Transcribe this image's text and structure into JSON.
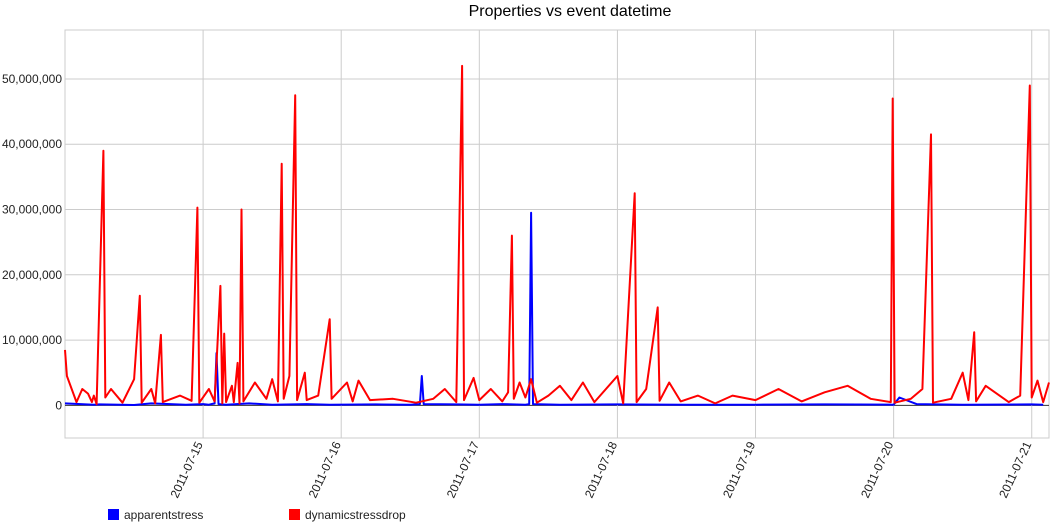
{
  "chart_data": {
    "type": "line",
    "title": "Properties vs event datetime",
    "xlabel": "",
    "ylabel": "",
    "xlim": [
      "2011-07-14 00:00",
      "2011-07-21 03:00"
    ],
    "ylim": [
      -5000000,
      57500000
    ],
    "yticks": [
      0,
      10000000,
      20000000,
      30000000,
      40000000,
      50000000
    ],
    "ytick_labels": [
      "0",
      "10,000,000",
      "20,000,000",
      "30,000,000",
      "40,000,000",
      "50,000,000"
    ],
    "xticks": [
      "2011-07-15",
      "2011-07-16",
      "2011-07-17",
      "2011-07-18",
      "2011-07-19",
      "2011-07-20",
      "2011-07-21"
    ],
    "grid": true,
    "legend_position": "bottom-left",
    "series": [
      {
        "name": "apparentstress",
        "color": "#0000ff",
        "points": [
          [
            "2011-07-14 00:00",
            300000
          ],
          [
            "2011-07-14 05:00",
            100000
          ],
          [
            "2011-07-14 06:00",
            150000
          ],
          [
            "2011-07-14 12:00",
            50000
          ],
          [
            "2011-07-14 15:00",
            300000
          ],
          [
            "2011-07-14 21:00",
            100000
          ],
          [
            "2011-07-15 00:00",
            200000
          ],
          [
            "2011-07-15 01:00",
            100000
          ],
          [
            "2011-07-15 02:00",
            300000
          ],
          [
            "2011-07-15 02:20",
            8000000
          ],
          [
            "2011-07-15 02:40",
            200000
          ],
          [
            "2011-07-15 04:00",
            100000
          ],
          [
            "2011-07-15 08:00",
            300000
          ],
          [
            "2011-07-15 12:00",
            100000
          ],
          [
            "2011-07-15 18:00",
            200000
          ],
          [
            "2011-07-15 22:00",
            100000
          ],
          [
            "2011-07-16 06:00",
            150000
          ],
          [
            "2011-07-16 12:00",
            100000
          ],
          [
            "2011-07-16 13:40",
            200000
          ],
          [
            "2011-07-16 14:00",
            4500000
          ],
          [
            "2011-07-16 14:20",
            200000
          ],
          [
            "2011-07-16 20:00",
            150000
          ],
          [
            "2011-07-17 00:00",
            100000
          ],
          [
            "2011-07-17 04:00",
            200000
          ],
          [
            "2011-07-17 08:00",
            100000
          ],
          [
            "2011-07-17 08:40",
            200000
          ],
          [
            "2011-07-17 09:00",
            29500000
          ],
          [
            "2011-07-17 09:20",
            200000
          ],
          [
            "2011-07-17 14:00",
            100000
          ],
          [
            "2011-07-18 00:00",
            150000
          ],
          [
            "2011-07-18 12:00",
            100000
          ],
          [
            "2011-07-19 00:00",
            100000
          ],
          [
            "2011-07-19 12:00",
            150000
          ],
          [
            "2011-07-20 00:00",
            100000
          ],
          [
            "2011-07-20 01:00",
            1200000
          ],
          [
            "2011-07-20 04:00",
            200000
          ],
          [
            "2011-07-20 12:00",
            100000
          ],
          [
            "2011-07-21 00:00",
            150000
          ],
          [
            "2011-07-21 02:00",
            100000
          ]
        ]
      },
      {
        "name": "dynamicstressdrop",
        "color": "#ff0000",
        "points": [
          [
            "2011-07-14 00:00",
            8500000
          ],
          [
            "2011-07-14 00:20",
            4500000
          ],
          [
            "2011-07-14 02:00",
            500000
          ],
          [
            "2011-07-14 03:00",
            2500000
          ],
          [
            "2011-07-14 04:00",
            1800000
          ],
          [
            "2011-07-14 04:40",
            500000
          ],
          [
            "2011-07-14 05:00",
            1500000
          ],
          [
            "2011-07-14 05:30",
            200000
          ],
          [
            "2011-07-14 06:40",
            39000000
          ],
          [
            "2011-07-14 07:00",
            1200000
          ],
          [
            "2011-07-14 08:00",
            2500000
          ],
          [
            "2011-07-14 10:00",
            400000
          ],
          [
            "2011-07-14 12:00",
            4000000
          ],
          [
            "2011-07-14 13:00",
            16800000
          ],
          [
            "2011-07-14 13:20",
            400000
          ],
          [
            "2011-07-14 15:00",
            2500000
          ],
          [
            "2011-07-14 15:40",
            300000
          ],
          [
            "2011-07-14 16:40",
            10800000
          ],
          [
            "2011-07-14 17:00",
            500000
          ],
          [
            "2011-07-14 20:00",
            1500000
          ],
          [
            "2011-07-14 22:00",
            700000
          ],
          [
            "2011-07-14 23:00",
            30300000
          ],
          [
            "2011-07-14 23:20",
            400000
          ],
          [
            "2011-07-15 01:00",
            2500000
          ],
          [
            "2011-07-15 02:00",
            600000
          ],
          [
            "2011-07-15 03:00",
            18300000
          ],
          [
            "2011-07-15 03:20",
            300000
          ],
          [
            "2011-07-15 03:40",
            11000000
          ],
          [
            "2011-07-15 04:00",
            500000
          ],
          [
            "2011-07-15 05:00",
            3000000
          ],
          [
            "2011-07-15 05:20",
            500000
          ],
          [
            "2011-07-15 06:00",
            6500000
          ],
          [
            "2011-07-15 06:20",
            300000
          ],
          [
            "2011-07-15 06:40",
            30000000
          ],
          [
            "2011-07-15 07:00",
            600000
          ],
          [
            "2011-07-15 09:00",
            3500000
          ],
          [
            "2011-07-15 11:00",
            1000000
          ],
          [
            "2011-07-15 12:00",
            4000000
          ],
          [
            "2011-07-15 13:00",
            600000
          ],
          [
            "2011-07-15 13:40",
            37000000
          ],
          [
            "2011-07-15 14:00",
            1000000
          ],
          [
            "2011-07-15 15:00",
            4500000
          ],
          [
            "2011-07-15 16:00",
            47500000
          ],
          [
            "2011-07-15 16:20",
            800000
          ],
          [
            "2011-07-15 17:40",
            5000000
          ],
          [
            "2011-07-15 18:00",
            800000
          ],
          [
            "2011-07-15 20:00",
            1500000
          ],
          [
            "2011-07-15 22:00",
            13200000
          ],
          [
            "2011-07-15 22:20",
            1000000
          ],
          [
            "2011-07-16 01:00",
            3500000
          ],
          [
            "2011-07-16 02:00",
            600000
          ],
          [
            "2011-07-16 03:00",
            3800000
          ],
          [
            "2011-07-16 05:00",
            800000
          ],
          [
            "2011-07-16 09:00",
            1000000
          ],
          [
            "2011-07-16 13:00",
            400000
          ],
          [
            "2011-07-16 16:00",
            1000000
          ],
          [
            "2011-07-16 18:00",
            2500000
          ],
          [
            "2011-07-16 20:00",
            500000
          ],
          [
            "2011-07-16 21:00",
            52000000
          ],
          [
            "2011-07-16 21:20",
            800000
          ],
          [
            "2011-07-16 23:00",
            4200000
          ],
          [
            "2011-07-17 00:00",
            800000
          ],
          [
            "2011-07-17 02:00",
            2500000
          ],
          [
            "2011-07-17 04:00",
            600000
          ],
          [
            "2011-07-17 05:00",
            2000000
          ],
          [
            "2011-07-17 05:40",
            26000000
          ],
          [
            "2011-07-17 06:00",
            1000000
          ],
          [
            "2011-07-17 07:00",
            3500000
          ],
          [
            "2011-07-17 08:00",
            1200000
          ],
          [
            "2011-07-17 09:00",
            4000000
          ],
          [
            "2011-07-17 10:00",
            400000
          ],
          [
            "2011-07-17 12:00",
            1500000
          ],
          [
            "2011-07-17 14:00",
            3000000
          ],
          [
            "2011-07-17 16:00",
            800000
          ],
          [
            "2011-07-17 18:00",
            3500000
          ],
          [
            "2011-07-17 20:00",
            500000
          ],
          [
            "2011-07-18 00:00",
            4500000
          ],
          [
            "2011-07-18 01:00",
            300000
          ],
          [
            "2011-07-18 03:00",
            32500000
          ],
          [
            "2011-07-18 03:20",
            500000
          ],
          [
            "2011-07-18 05:00",
            2500000
          ],
          [
            "2011-07-18 07:00",
            15000000
          ],
          [
            "2011-07-18 07:20",
            700000
          ],
          [
            "2011-07-18 09:00",
            3500000
          ],
          [
            "2011-07-18 11:00",
            600000
          ],
          [
            "2011-07-18 14:00",
            1500000
          ],
          [
            "2011-07-18 17:00",
            300000
          ],
          [
            "2011-07-18 20:00",
            1500000
          ],
          [
            "2011-07-19 00:00",
            800000
          ],
          [
            "2011-07-19 04:00",
            2500000
          ],
          [
            "2011-07-19 08:00",
            600000
          ],
          [
            "2011-07-19 12:00",
            2000000
          ],
          [
            "2011-07-19 16:00",
            3000000
          ],
          [
            "2011-07-19 20:00",
            1000000
          ],
          [
            "2011-07-19 23:30",
            500000
          ],
          [
            "2011-07-19 23:50",
            47000000
          ],
          [
            "2011-07-20 00:10",
            400000
          ],
          [
            "2011-07-20 03:00",
            1000000
          ],
          [
            "2011-07-20 05:00",
            2500000
          ],
          [
            "2011-07-20 06:30",
            41500000
          ],
          [
            "2011-07-20 06:50",
            400000
          ],
          [
            "2011-07-20 10:00",
            1000000
          ],
          [
            "2011-07-20 12:00",
            5000000
          ],
          [
            "2011-07-20 13:00",
            800000
          ],
          [
            "2011-07-20 14:00",
            11200000
          ],
          [
            "2011-07-20 14:20",
            600000
          ],
          [
            "2011-07-20 16:00",
            3000000
          ],
          [
            "2011-07-20 20:00",
            500000
          ],
          [
            "2011-07-20 22:00",
            1500000
          ],
          [
            "2011-07-20 23:40",
            49000000
          ],
          [
            "2011-07-21 00:00",
            1200000
          ],
          [
            "2011-07-21 01:00",
            3800000
          ],
          [
            "2011-07-21 02:00",
            500000
          ],
          [
            "2011-07-21 03:00",
            3500000
          ]
        ]
      }
    ]
  }
}
